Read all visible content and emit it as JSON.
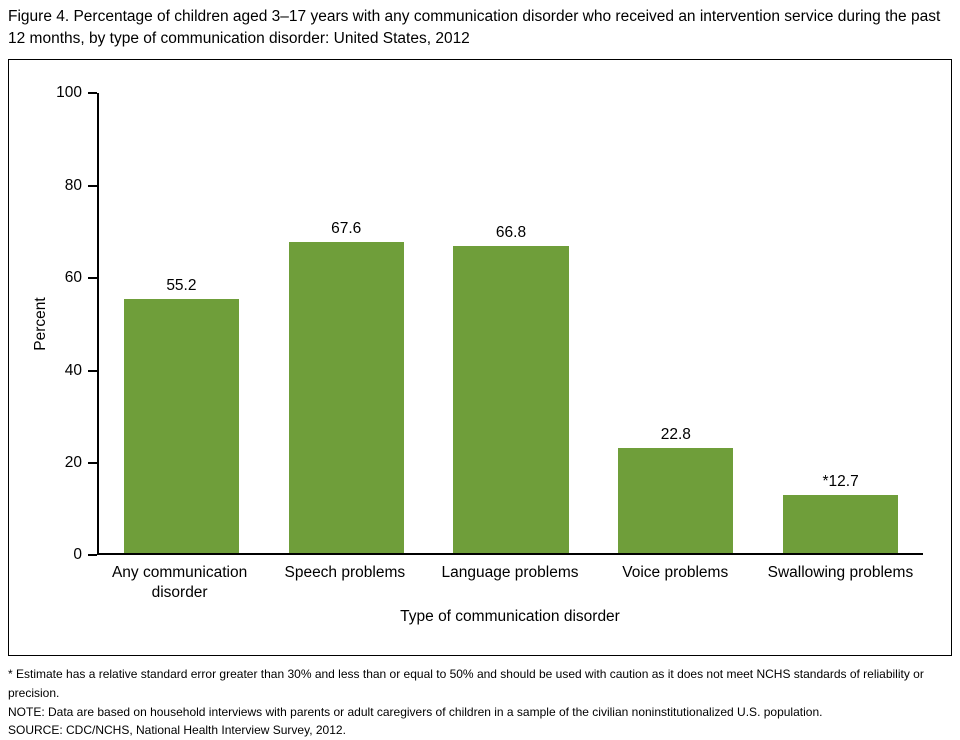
{
  "figure": {
    "title": "Figure 4. Percentage of children aged 3–17 years with any communication disorder who received an intervention service during the past 12 months, by type of communication disorder: United States, 2012"
  },
  "chart_data": {
    "type": "bar",
    "categories": [
      "Any communication disorder",
      "Speech problems",
      "Language problems",
      "Voice problems",
      "Swallowing problems"
    ],
    "values": [
      55.2,
      67.6,
      66.8,
      22.8,
      12.7
    ],
    "value_labels": [
      "55.2",
      "67.6",
      "66.8",
      "22.8",
      "*12.7"
    ],
    "xlabel": "Type of communication disorder",
    "ylabel": "Percent",
    "ylim": [
      0,
      100
    ],
    "yticks": [
      0,
      20,
      40,
      60,
      80,
      100
    ],
    "bar_color": "#6f9e3a",
    "grid": false,
    "legend": false
  },
  "footnotes": {
    "asterisk": "* Estimate has a relative standard error greater than 30% and less than or equal to 50% and should be used with caution as it does not meet NCHS standards of reliability or precision.",
    "note": "NOTE: Data are based on household interviews with parents or adult caregivers of children in a sample of the civilian noninstitutionalized U.S. population.",
    "source": "SOURCE: CDC/NCHS, National Health Interview Survey, 2012."
  }
}
